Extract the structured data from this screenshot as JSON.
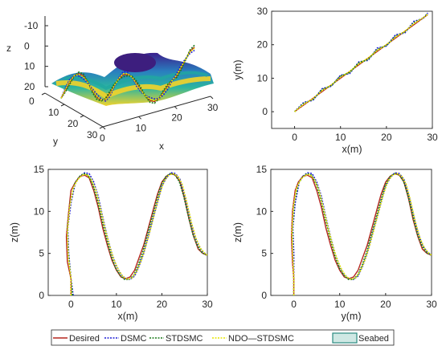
{
  "colors": {
    "desired": "#b5271f",
    "dsmc": "#1f1fd6",
    "stdsmc": "#1a7a1a",
    "ndo": "#e6e600",
    "seabed_edge": "#2a8a80",
    "axis": "#262626"
  },
  "legend": {
    "entries": [
      "Desired",
      "DSMC",
      "STDSMC",
      "NDO—STDSMC",
      "Seabed"
    ]
  },
  "chart_data": [
    {
      "type": "surface3d",
      "xlabel": "x",
      "ylabel": "y",
      "zlabel": "z",
      "x_ticks": [
        "0",
        "10",
        "20",
        "30"
      ],
      "y_ticks": [
        "0",
        "10",
        "20",
        "30"
      ],
      "z_ticks": [
        "-10",
        "0",
        "10",
        "20"
      ],
      "xlim": [
        0,
        30
      ],
      "ylim": [
        0,
        30
      ],
      "zlim": [
        -15,
        20
      ],
      "path": {
        "t": [
          0,
          1,
          2,
          3,
          4,
          5,
          6,
          7,
          8,
          9,
          10,
          11,
          12,
          13,
          14,
          15,
          16,
          17,
          18,
          19,
          20,
          21,
          22,
          23,
          24,
          25,
          26,
          27,
          28,
          29,
          30
        ],
        "z": [
          14,
          10,
          6,
          3,
          2,
          3,
          6,
          10,
          13,
          14.5,
          14,
          11,
          7,
          4,
          2,
          1.8,
          3,
          6,
          9,
          12,
          14,
          14.5,
          13,
          10,
          7,
          4,
          2,
          -2,
          -6,
          -10,
          -12
        ]
      }
    },
    {
      "type": "line",
      "xlabel": "x(m)",
      "ylabel": "y(m)",
      "xlim": [
        -5,
        30
      ],
      "ylim": [
        -5,
        30
      ],
      "x_ticks": [
        0,
        10,
        20,
        30
      ],
      "y_ticks": [
        0,
        10,
        20,
        30
      ],
      "series": [
        {
          "key": "desired",
          "x": [
            0,
            5,
            10,
            15,
            20,
            25,
            29
          ],
          "y": [
            0,
            5,
            10,
            15,
            20,
            25,
            29
          ]
        },
        {
          "key": "dsmc",
          "x": [
            0,
            2,
            4,
            6,
            8,
            10,
            12,
            14,
            16,
            18,
            20,
            22,
            24,
            26,
            28,
            29
          ],
          "y": [
            0,
            2.8,
            3.4,
            6.9,
            7.6,
            10.9,
            11.4,
            14.9,
            15.3,
            19,
            19.6,
            23,
            23.5,
            27,
            27.8,
            29.5
          ]
        },
        {
          "key": "stdsmc",
          "x": [
            0,
            2,
            4,
            6,
            8,
            10,
            12,
            14,
            16,
            18,
            20,
            22,
            24,
            26,
            28,
            29
          ],
          "y": [
            0,
            2.5,
            3.6,
            6.6,
            7.8,
            10.6,
            11.7,
            14.6,
            15.6,
            18.6,
            19.8,
            22.6,
            23.8,
            26.6,
            28,
            29.3
          ]
        },
        {
          "key": "ndo",
          "x": [
            0,
            2,
            4,
            6,
            8,
            10,
            12,
            14,
            16,
            18,
            20,
            22,
            24,
            26,
            28,
            29
          ],
          "y": [
            0,
            2.2,
            3.9,
            6.3,
            8,
            10.3,
            12,
            14.3,
            16,
            18.3,
            20,
            22.3,
            24,
            26.3,
            28,
            29.1
          ]
        }
      ]
    },
    {
      "type": "line",
      "xlabel": "x(m)",
      "ylabel": "z(m)",
      "xlim": [
        -5,
        30
      ],
      "ylim": [
        0,
        15
      ],
      "x_ticks": [
        0,
        10,
        20,
        30
      ],
      "y_ticks": [
        0,
        5,
        10,
        15
      ],
      "series": [
        {
          "key": "desired",
          "x": [
            0,
            0,
            -0.8,
            -1,
            -0.5,
            0,
            1,
            2,
            3,
            4,
            5,
            6,
            7,
            8,
            9,
            10,
            11,
            12,
            13,
            14,
            15,
            16,
            17,
            18,
            19,
            20,
            21,
            22,
            23,
            24,
            25,
            26,
            27,
            28,
            29,
            30
          ],
          "y": [
            0,
            2,
            4,
            7,
            10,
            12.5,
            13.5,
            14.2,
            14.3,
            14,
            12.5,
            10.5,
            8,
            6,
            4.2,
            3,
            2.2,
            2,
            2.2,
            3,
            4.5,
            6,
            8,
            10,
            12,
            13.5,
            14.2,
            14.5,
            14.3,
            13.5,
            11.5,
            9,
            7,
            5.5,
            5,
            4.8
          ]
        },
        {
          "key": "dsmc",
          "x": [
            0.5,
            0,
            -0.5,
            -0.7,
            0,
            1,
            2,
            3,
            4,
            5,
            6,
            7,
            8,
            9,
            10,
            11,
            12,
            13,
            14,
            15,
            16,
            17,
            18,
            19,
            20,
            21,
            22,
            23,
            24,
            25,
            26,
            27,
            28,
            29,
            30
          ],
          "y": [
            0,
            2,
            5,
            8,
            11,
            13.5,
            14.2,
            14.6,
            14.5,
            13.5,
            11.8,
            9.3,
            7,
            5,
            3.5,
            2.5,
            2,
            1.9,
            2.3,
            3.5,
            5,
            7,
            9,
            11,
            13,
            14,
            14.6,
            14.5,
            13.8,
            12,
            9.7,
            7.5,
            6,
            5.2,
            4.8
          ]
        },
        {
          "key": "stdsmc",
          "x": [
            0.3,
            0,
            -0.6,
            -0.8,
            -0.2,
            0.8,
            1.8,
            2.8,
            3.8,
            4.8,
            5.8,
            6.8,
            7.8,
            8.8,
            9.8,
            10.8,
            11.8,
            12.8,
            13.8,
            14.8,
            15.8,
            16.8,
            17.8,
            18.8,
            19.8,
            20.8,
            21.8,
            22.8,
            23.8,
            24.8,
            25.8,
            26.8,
            27.8,
            28.8,
            29.8
          ],
          "y": [
            0,
            2,
            5,
            8,
            11,
            13.3,
            14.1,
            14.5,
            14.3,
            13.2,
            11.4,
            9,
            6.8,
            4.8,
            3.3,
            2.4,
            1.9,
            1.9,
            2.4,
            3.6,
            5.2,
            7.2,
            9.2,
            11.2,
            13.1,
            14.1,
            14.5,
            14.4,
            13.6,
            11.8,
            9.5,
            7.3,
            5.9,
            5.1,
            4.8
          ]
        },
        {
          "key": "ndo",
          "x": [
            0,
            0,
            -0.6,
            -0.8,
            -0.3,
            0.5,
            1.5,
            2.5,
            3.5,
            4.5,
            5.5,
            6.5,
            7.5,
            8.5,
            9.5,
            10.5,
            11.5,
            12.5,
            13.5,
            14.5,
            15.5,
            16.5,
            17.5,
            18.5,
            19.5,
            20.5,
            21.5,
            22.5,
            23.5,
            24.5,
            25.5,
            26.5,
            27.5,
            28.5,
            29.5,
            30
          ],
          "y": [
            0,
            2,
            4.5,
            7.5,
            10.5,
            12.8,
            13.8,
            14.3,
            14.4,
            13.8,
            12.5,
            10.3,
            8,
            5.9,
            4.2,
            3,
            2.2,
            1.9,
            2.1,
            2.9,
            4.2,
            5.9,
            7.9,
            10,
            12,
            13.6,
            14.3,
            14.5,
            14.2,
            13.2,
            11.1,
            8.7,
            6.8,
            5.6,
            5,
            4.8
          ]
        }
      ]
    },
    {
      "type": "line",
      "xlabel": "y(m)",
      "ylabel": "z(m)",
      "xlim": [
        -5,
        30
      ],
      "ylim": [
        0,
        15
      ],
      "x_ticks": [
        0,
        10,
        20,
        30
      ],
      "y_ticks": [
        0,
        5,
        10,
        15
      ],
      "series": [
        {
          "key": "desired",
          "x": [
            0,
            0,
            -0.3,
            -0.5,
            -0.3,
            0.3,
            1,
            2,
            3,
            4,
            5,
            6,
            7,
            8,
            9,
            10,
            11,
            12,
            13,
            14,
            15,
            16,
            17,
            18,
            19,
            20,
            21,
            22,
            23,
            24,
            25,
            26,
            27,
            28,
            29,
            30
          ],
          "y": [
            0,
            2,
            4,
            7,
            10,
            12.5,
            13.5,
            14.2,
            14.3,
            14,
            12.5,
            10.5,
            8,
            6,
            4.2,
            3,
            2.2,
            2,
            2.2,
            3,
            4.5,
            6,
            8,
            10,
            12,
            13.5,
            14.2,
            14.5,
            14.3,
            13.5,
            11.5,
            9,
            7,
            5.5,
            5,
            4.8
          ]
        },
        {
          "key": "dsmc",
          "x": [
            0,
            0,
            0,
            -0.2,
            0.3,
            1.2,
            2,
            3,
            4,
            5,
            6,
            7,
            8,
            9,
            10,
            11,
            12,
            13,
            14,
            15,
            16,
            17,
            18,
            19,
            20,
            21,
            22,
            23,
            24,
            25,
            26,
            27,
            28,
            29,
            30
          ],
          "y": [
            0,
            2,
            5,
            8,
            11,
            13.5,
            14.2,
            14.6,
            14.5,
            13.5,
            11.8,
            9.3,
            7,
            5,
            3.5,
            2.5,
            2,
            1.9,
            2.3,
            3.5,
            5,
            7,
            9,
            11,
            13,
            14,
            14.6,
            14.5,
            13.8,
            12,
            9.7,
            7.5,
            6,
            5.2,
            4.8
          ]
        },
        {
          "key": "stdsmc",
          "x": [
            0,
            0,
            -0.2,
            -0.3,
            0.1,
            1,
            1.9,
            2.9,
            3.9,
            4.9,
            5.9,
            6.9,
            7.9,
            8.9,
            9.9,
            10.9,
            11.9,
            12.9,
            13.9,
            14.9,
            15.9,
            16.9,
            17.9,
            18.9,
            19.9,
            20.9,
            21.9,
            22.9,
            23.9,
            24.9,
            25.9,
            26.9,
            27.9,
            28.9,
            29.8
          ],
          "y": [
            0,
            2,
            5,
            8,
            11,
            13.3,
            14.1,
            14.5,
            14.3,
            13.2,
            11.4,
            9,
            6.8,
            4.8,
            3.3,
            2.4,
            1.9,
            1.9,
            2.4,
            3.6,
            5.2,
            7.2,
            9.2,
            11.2,
            13.1,
            14.1,
            14.5,
            14.4,
            13.6,
            11.8,
            9.5,
            7.3,
            5.9,
            5.1,
            4.8
          ]
        },
        {
          "key": "ndo",
          "x": [
            0,
            0,
            -0.2,
            -0.4,
            -0.1,
            0.6,
            1.5,
            2.5,
            3.5,
            4.5,
            5.5,
            6.5,
            7.5,
            8.5,
            9.5,
            10.5,
            11.5,
            12.5,
            13.5,
            14.5,
            15.5,
            16.5,
            17.5,
            18.5,
            19.5,
            20.5,
            21.5,
            22.5,
            23.5,
            24.5,
            25.5,
            26.5,
            27.5,
            28.5,
            29.5,
            30
          ],
          "y": [
            0,
            2,
            4.5,
            7.5,
            10.5,
            12.8,
            13.8,
            14.3,
            14.4,
            13.8,
            12.5,
            10.3,
            8,
            5.9,
            4.2,
            3,
            2.2,
            1.9,
            2.1,
            2.9,
            4.2,
            5.9,
            7.9,
            10,
            12,
            13.6,
            14.3,
            14.5,
            14.2,
            13.2,
            11.1,
            8.7,
            6.8,
            5.6,
            5,
            4.8
          ]
        }
      ]
    }
  ]
}
